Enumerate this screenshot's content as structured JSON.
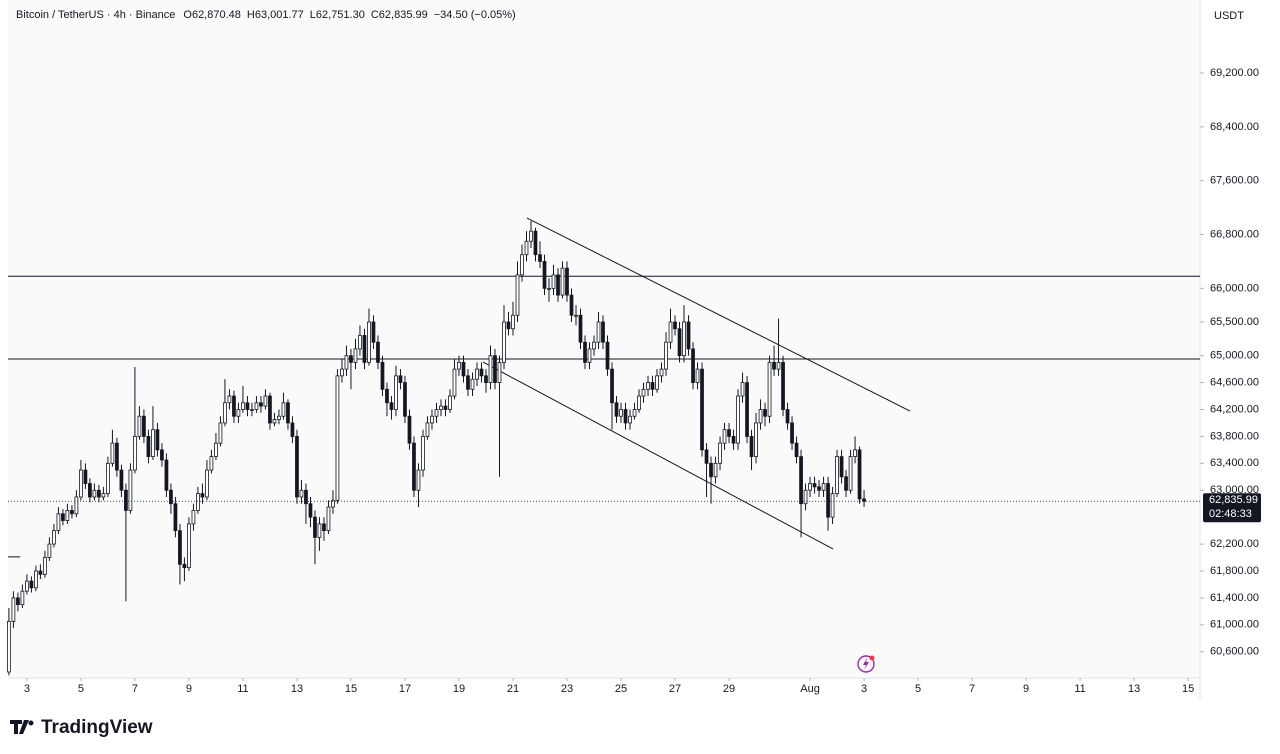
{
  "chart_data": {
    "type": "candlestick",
    "title": "Bitcoin / TetherUS · 4h · Binance",
    "ohlc_labels": [
      "O62,870.48",
      "H63,001.77",
      "L62,751.30",
      "C62,835.99",
      "−34.50 (−0.05%)"
    ],
    "currency": "USDT",
    "up_color": "#ffffff",
    "down_color": "#131722",
    "edge_color": "#131722",
    "x": [
      2.333,
      2.5,
      2.667,
      2.833,
      3,
      3.167,
      3.333,
      3.5,
      3.667,
      3.833,
      4,
      4.167,
      4.333,
      4.5,
      4.667,
      4.833,
      5,
      5.167,
      5.333,
      5.5,
      5.667,
      5.833,
      6,
      6.167,
      6.333,
      6.5,
      6.667,
      6.833,
      7,
      7.167,
      7.333,
      7.5,
      7.667,
      7.833,
      8,
      8.167,
      8.333,
      8.5,
      8.667,
      8.833,
      9,
      9.167,
      9.333,
      9.5,
      9.667,
      9.833,
      10,
      10.167,
      10.333,
      10.5,
      10.667,
      10.833,
      11,
      11.167,
      11.333,
      11.5,
      11.667,
      11.833,
      12,
      12.167,
      12.333,
      12.5,
      12.667,
      12.833,
      13,
      13.167,
      13.333,
      13.5,
      13.667,
      13.833,
      14,
      14.167,
      14.333,
      14.5,
      14.667,
      14.833,
      15,
      15.167,
      15.333,
      15.5,
      15.667,
      15.833,
      16,
      16.167,
      16.333,
      16.5,
      16.667,
      16.833,
      17,
      17.167,
      17.333,
      17.5,
      17.667,
      17.833,
      18,
      18.167,
      18.333,
      18.5,
      18.667,
      18.833,
      19,
      19.167,
      19.333,
      19.5,
      19.667,
      19.833,
      20,
      20.167,
      20.333,
      20.5,
      20.667,
      20.833,
      21,
      21.167,
      21.333,
      21.5,
      21.667,
      21.833,
      22,
      22.167,
      22.333,
      22.5,
      22.667,
      22.833,
      23,
      23.167,
      23.333,
      23.5,
      23.667,
      23.833,
      24,
      24.167,
      24.333,
      24.5,
      24.667,
      24.833,
      25,
      25.167,
      25.333,
      25.5,
      25.667,
      25.833,
      26,
      26.167,
      26.333,
      26.5,
      26.667,
      26.833,
      27,
      27.167,
      27.333,
      27.5,
      27.667,
      27.833,
      28,
      28.167,
      28.333,
      28.5,
      28.667,
      28.833,
      29,
      29.167,
      29.333,
      29.5,
      29.667,
      29.833,
      30,
      30.167,
      30.333,
      30.5,
      30.667,
      30.833,
      31,
      31.167,
      31.333,
      31.5,
      31.667,
      31.833,
      32,
      32.167,
      32.333,
      32.5,
      32.667,
      32.833,
      33,
      33.167,
      33.333,
      33.5,
      33.667,
      33.833,
      34
    ],
    "open": [
      60300,
      61050,
      61400,
      61300,
      61500,
      61650,
      61550,
      61800,
      61750,
      62000,
      62200,
      62400,
      62650,
      62550,
      62700,
      62650,
      62900,
      63300,
      63100,
      62900,
      63000,
      62900,
      62950,
      63400,
      63700,
      63300,
      63000,
      62700,
      63300,
      63800,
      64100,
      63800,
      63500,
      63900,
      63600,
      63450,
      63000,
      62800,
      62400,
      61900,
      61850,
      62500,
      62700,
      62950,
      62900,
      63300,
      63500,
      63700,
      64000,
      64300,
      64400,
      64100,
      64200,
      64300,
      64200,
      64200,
      64300,
      64250,
      64400,
      64000,
      64050,
      64100,
      64300,
      64000,
      63800,
      62900,
      63000,
      62800,
      62600,
      62300,
      62500,
      62400,
      62750,
      62850,
      64700,
      64800,
      65000,
      64900,
      65100,
      65300,
      64900,
      65500,
      65200,
      64900,
      64500,
      64300,
      64200,
      64700,
      64600,
      64100,
      63700,
      63000,
      63300,
      63800,
      64000,
      64100,
      64200,
      64250,
      64200,
      64400,
      64800,
      64900,
      64700,
      64500,
      64650,
      64800,
      64700,
      64600,
      65000,
      64600,
      64900,
      65500,
      65400,
      65600,
      66200,
      66500,
      66700,
      66850,
      66500,
      66400,
      66000,
      66000,
      66200,
      65900,
      66300,
      65900,
      65600,
      65600,
      65200,
      64900,
      65100,
      65200,
      65500,
      65200,
      64800,
      64300,
      64100,
      64200,
      64000,
      64100,
      64200,
      64400,
      64500,
      64600,
      64500,
      64700,
      64800,
      65200,
      65500,
      65400,
      65000,
      65500,
      65100,
      64600,
      64800,
      63600,
      63400,
      63200,
      63400,
      63700,
      63900,
      63800,
      63700,
      64400,
      64600,
      63800,
      63500,
      64000,
      64200,
      64100,
      64900,
      64800,
      64900,
      64200,
      64000,
      63700,
      63500,
      62800,
      63000,
      63100,
      63050,
      63000,
      63100,
      62600,
      62950,
      63500,
      63200,
      63000,
      63500,
      63600,
      62870.48
    ],
    "high": [
      61250,
      61500,
      61480,
      61600,
      61750,
      61720,
      61880,
      61900,
      62100,
      62300,
      62500,
      62750,
      62720,
      62800,
      62780,
      63000,
      63450,
      63400,
      63180,
      63100,
      63080,
      63050,
      63500,
      63900,
      63780,
      63380,
      63100,
      63400,
      64830,
      64250,
      64200,
      63900,
      64250,
      64000,
      63700,
      63550,
      63100,
      62900,
      62500,
      62000,
      62600,
      62800,
      63050,
      63100,
      63450,
      63600,
      63850,
      64100,
      64650,
      64500,
      64480,
      64300,
      64550,
      64400,
      64300,
      64400,
      64400,
      64500,
      64450,
      64150,
      64200,
      64450,
      64350,
      64100,
      63900,
      63150,
      63100,
      62900,
      62700,
      62600,
      62600,
      62850,
      63000,
      64800,
      64950,
      65150,
      65100,
      65250,
      65450,
      65400,
      65700,
      65600,
      65300,
      65000,
      64600,
      64400,
      64850,
      64800,
      64700,
      64200,
      63800,
      63400,
      63900,
      64100,
      64200,
      64300,
      64350,
      64350,
      64500,
      64950,
      65000,
      65000,
      64800,
      64750,
      64900,
      64900,
      64800,
      65150,
      65100,
      65000,
      65750,
      65650,
      65800,
      66400,
      66650,
      66850,
      67000,
      66900,
      66700,
      66500,
      66150,
      66350,
      66300,
      66400,
      66400,
      66000,
      65750,
      65700,
      65300,
      65200,
      65300,
      65650,
      65600,
      65300,
      64900,
      64400,
      64300,
      64300,
      64200,
      64300,
      64500,
      64600,
      64700,
      64700,
      64800,
      64900,
      65350,
      65700,
      65600,
      65500,
      65750,
      65600,
      65200,
      64900,
      64900,
      63700,
      63500,
      63500,
      63800,
      64000,
      64000,
      63900,
      64500,
      64750,
      64700,
      63900,
      64150,
      64350,
      64300,
      65000,
      65150,
      65550,
      65000,
      64300,
      64100,
      63800,
      63600,
      63100,
      63200,
      63200,
      63150,
      63200,
      63200,
      63050,
      63600,
      63600,
      63300,
      63600,
      63800,
      63650,
      63001.77
    ],
    "low": [
      60250,
      60950,
      61200,
      61250,
      61450,
      61480,
      61500,
      61680,
      61700,
      61950,
      62150,
      62350,
      62480,
      62500,
      62580,
      62600,
      62850,
      63020,
      62820,
      62850,
      62820,
      62850,
      62900,
      63350,
      63200,
      62900,
      61350,
      62650,
      63250,
      63750,
      63700,
      63400,
      63450,
      63500,
      63350,
      62900,
      62650,
      62300,
      61600,
      61650,
      61800,
      62400,
      62650,
      62800,
      62850,
      63250,
      63450,
      63650,
      63950,
      64200,
      64000,
      64000,
      64150,
      64100,
      64100,
      64150,
      64150,
      64200,
      63900,
      63950,
      63980,
      64050,
      63900,
      63700,
      62800,
      62800,
      62500,
      62450,
      61900,
      62100,
      62250,
      62350,
      62650,
      62800,
      64600,
      64700,
      64500,
      64800,
      65000,
      64800,
      64850,
      65100,
      64800,
      64400,
      64100,
      64050,
      64100,
      64500,
      64000,
      63600,
      62900,
      62750,
      63200,
      63750,
      63900,
      64000,
      64100,
      64100,
      64150,
      64350,
      64700,
      64600,
      64400,
      64400,
      64550,
      64600,
      64450,
      64500,
      64500,
      63200,
      64800,
      65300,
      65300,
      65500,
      66100,
      66400,
      66600,
      66400,
      66300,
      65900,
      65800,
      65900,
      65800,
      65850,
      65800,
      65500,
      65450,
      65100,
      64800,
      64800,
      65000,
      65100,
      65100,
      64700,
      63900,
      64000,
      64000,
      63900,
      63900,
      64050,
      64150,
      64300,
      64400,
      64400,
      64450,
      64600,
      64700,
      65100,
      65300,
      64900,
      64900,
      65000,
      64500,
      64500,
      63500,
      62900,
      62800,
      63100,
      63300,
      63600,
      63700,
      63600,
      63600,
      64300,
      63700,
      63300,
      63400,
      63900,
      63950,
      64000,
      64700,
      64700,
      64100,
      63900,
      63600,
      63400,
      62300,
      62700,
      62900,
      62950,
      62900,
      62900,
      62400,
      62500,
      62900,
      63100,
      62900,
      62950,
      63400,
      62800,
      62751.3
    ],
    "close": [
      61050,
      61400,
      61300,
      61500,
      61650,
      61550,
      61800,
      61750,
      62000,
      62200,
      62400,
      62650,
      62550,
      62700,
      62650,
      62900,
      63300,
      63100,
      62900,
      63000,
      62900,
      62950,
      63400,
      63700,
      63300,
      63000,
      62700,
      63300,
      63800,
      64100,
      63800,
      63500,
      63900,
      63600,
      63450,
      63000,
      62800,
      62400,
      61900,
      61850,
      62500,
      62700,
      62950,
      62900,
      63300,
      63500,
      63700,
      64000,
      64300,
      64400,
      64100,
      64200,
      64300,
      64200,
      64200,
      64300,
      64250,
      64400,
      64000,
      64050,
      64100,
      64300,
      64000,
      63800,
      62900,
      63000,
      62800,
      62600,
      62300,
      62500,
      62400,
      62750,
      62850,
      64700,
      64800,
      65000,
      64900,
      65100,
      65300,
      64900,
      65500,
      65200,
      64900,
      64500,
      64300,
      64200,
      64700,
      64600,
      64100,
      63700,
      63000,
      63300,
      63800,
      64000,
      64100,
      64200,
      64250,
      64200,
      64400,
      64800,
      64900,
      64700,
      64500,
      64650,
      64800,
      64700,
      64600,
      65000,
      64600,
      64900,
      65500,
      65400,
      65600,
      66200,
      66500,
      66700,
      66850,
      66500,
      66400,
      66000,
      66000,
      66200,
      65900,
      66300,
      65900,
      65600,
      65600,
      65200,
      64900,
      65100,
      65200,
      65500,
      65200,
      64800,
      64300,
      64100,
      64200,
      64000,
      64100,
      64200,
      64400,
      64500,
      64600,
      64500,
      64700,
      64800,
      65200,
      65500,
      65400,
      65000,
      65500,
      65100,
      64600,
      64800,
      63600,
      63400,
      63200,
      63400,
      63700,
      63900,
      63800,
      63700,
      64400,
      64600,
      63800,
      63500,
      64000,
      64200,
      64100,
      64900,
      64800,
      64900,
      64200,
      64000,
      63700,
      63500,
      62800,
      63000,
      63100,
      63050,
      63000,
      63100,
      62600,
      62950,
      63500,
      63200,
      63000,
      63500,
      63600,
      62870.48,
      62835.99
    ],
    "xlim": [
      2.3,
      46.44
    ],
    "xticks": [
      3,
      5,
      7,
      9,
      11,
      13,
      15,
      17,
      19,
      21,
      23,
      25,
      27,
      29,
      {
        "value": 32,
        "label": "Aug"
      },
      {
        "value": 34,
        "label": "3"
      },
      {
        "value": 36,
        "label": "5"
      },
      {
        "value": 38,
        "label": "7"
      },
      {
        "value": 40,
        "label": "9"
      },
      {
        "value": 42,
        "label": "11"
      },
      {
        "value": 44,
        "label": "13"
      },
      {
        "value": 46,
        "label": "15"
      }
    ],
    "ylim": [
      60210,
      70285
    ],
    "yticks": [
      {
        "value": 69200,
        "label": "69,200.00"
      },
      {
        "value": 68400,
        "label": "68,400.00"
      },
      {
        "value": 67600,
        "label": "67,600.00"
      },
      {
        "value": 66800,
        "label": "66,800.00"
      },
      {
        "value": 66000,
        "label": "66,000.00"
      },
      {
        "value": 65500,
        "label": "65,500.00"
      },
      {
        "value": 65000,
        "label": "65,000.00"
      },
      {
        "value": 64600,
        "label": "64,600.00"
      },
      {
        "value": 64200,
        "label": "64,200.00"
      },
      {
        "value": 63800,
        "label": "63,800.00"
      },
      {
        "value": 63400,
        "label": "63,400.00"
      },
      {
        "value": 63000,
        "label": "63,000.00"
      },
      {
        "value": 62200,
        "label": "62,200.00"
      },
      {
        "value": 61800,
        "label": "61,800.00"
      },
      {
        "value": 61400,
        "label": "61,400.00"
      },
      {
        "value": 61000,
        "label": "61,000.00"
      },
      {
        "value": 60600,
        "label": "60,600.00"
      }
    ],
    "hlines": [
      66180,
      64950
    ],
    "trendlines": [
      {
        "x": [
          21.52,
          35.7
        ],
        "y": [
          67045,
          64177
        ]
      },
      {
        "x": [
          19.89,
          32.85
        ],
        "y": [
          64905,
          62127
        ]
      },
      {
        "x": [
          2.3,
          2.75
        ],
        "y": [
          62010,
          62010
        ]
      }
    ],
    "last_price_label": "62,835.99",
    "countdown": "02:48:33"
  },
  "brand": "TradingView"
}
